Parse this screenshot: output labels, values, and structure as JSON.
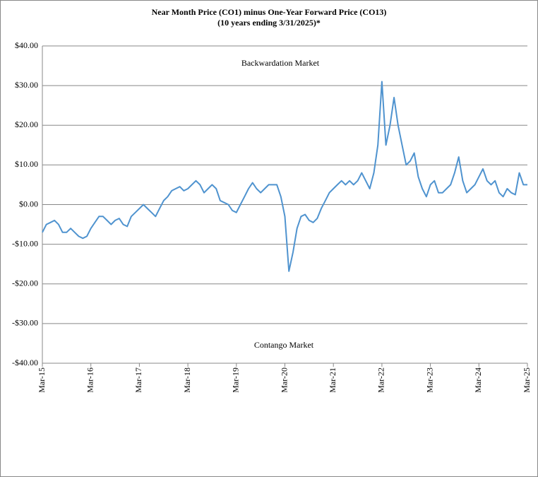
{
  "chart_data": {
    "type": "line",
    "title": "Near Month Price (CO1) minus One-Year Forward Price (CO13)",
    "subtitle": "(10 years ending 3/31/2025)*",
    "annotations": [
      "Backwardation Market",
      "Contango Market"
    ],
    "categories": [
      "Mar-15",
      null,
      null,
      null,
      null,
      null,
      null,
      null,
      null,
      null,
      null,
      null,
      "Mar-16",
      null,
      null,
      null,
      null,
      null,
      null,
      null,
      null,
      null,
      null,
      null,
      "Mar-17",
      null,
      null,
      null,
      null,
      null,
      null,
      null,
      null,
      null,
      null,
      null,
      "Mar-18",
      null,
      null,
      null,
      null,
      null,
      null,
      null,
      null,
      null,
      null,
      null,
      "Mar-19",
      null,
      null,
      null,
      null,
      null,
      null,
      null,
      null,
      null,
      null,
      null,
      "Mar-20",
      null,
      null,
      null,
      null,
      null,
      null,
      null,
      null,
      null,
      null,
      null,
      "Mar-21",
      null,
      null,
      null,
      null,
      null,
      null,
      null,
      null,
      null,
      null,
      null,
      "Mar-22",
      null,
      null,
      null,
      null,
      null,
      null,
      null,
      null,
      null,
      null,
      null,
      "Mar-23",
      null,
      null,
      null,
      null,
      null,
      null,
      null,
      null,
      null,
      null,
      null,
      "Mar-24",
      null,
      null,
      null,
      null,
      null,
      null,
      null,
      null,
      null,
      null,
      null,
      "Mar-25"
    ],
    "series": [
      {
        "name": "CO1 minus CO13",
        "color": "#4f93cf",
        "values": [
          -7,
          -5,
          -4.5,
          -4,
          -5,
          -7,
          -7,
          -6,
          -7,
          -8,
          -8.5,
          -8,
          -6,
          -4.5,
          -3,
          -3,
          -4,
          -5,
          -4,
          -3.5,
          -5,
          -5.5,
          -3,
          -2,
          -1,
          0,
          -1,
          -2,
          -3,
          -1,
          1,
          2,
          3.5,
          4,
          4.5,
          3.5,
          4,
          5,
          6,
          5,
          3,
          4,
          5,
          4,
          1,
          0.5,
          0,
          -1.5,
          -2,
          0,
          2,
          4,
          5.5,
          4,
          3,
          4,
          5,
          5,
          5,
          2,
          -3,
          -16.8,
          -12,
          -6,
          -3,
          -2.5,
          -4,
          -4.5,
          -3.5,
          -1,
          1,
          3,
          4,
          5,
          6,
          5,
          6,
          5,
          6,
          8,
          6,
          4,
          8,
          15,
          31,
          15,
          20,
          27,
          20,
          15,
          10,
          11,
          13,
          7,
          4,
          2,
          5,
          6,
          3,
          3,
          4,
          5,
          8,
          12,
          6,
          3,
          4,
          5,
          7,
          9,
          6,
          5,
          6,
          3,
          2,
          4,
          3,
          2.5,
          8,
          5,
          5
        ]
      }
    ],
    "ylim": [
      -40,
      40
    ],
    "yticks": [
      {
        "value": -40,
        "label": "-$40.00"
      },
      {
        "value": -30,
        "label": "-$30.00"
      },
      {
        "value": -20,
        "label": "-$20.00"
      },
      {
        "value": -10,
        "label": "-$10.00"
      },
      {
        "value": 0,
        "label": "$0.00"
      },
      {
        "value": 10,
        "label": "$10.00"
      },
      {
        "value": 20,
        "label": "$20.00"
      },
      {
        "value": 30,
        "label": "$30.00"
      },
      {
        "value": 40,
        "label": "$40.00"
      }
    ],
    "grid": true
  }
}
